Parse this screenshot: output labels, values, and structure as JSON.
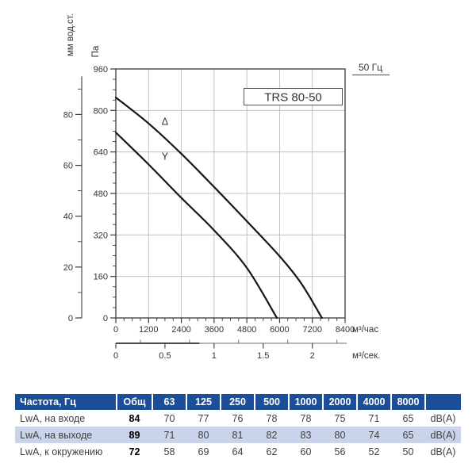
{
  "chart_data": {
    "type": "line",
    "title": "TRS 80-50",
    "frequency_badge": "50 Гц",
    "y_axis": {
      "label": "Па",
      "min": 0,
      "max": 960,
      "major_step": 160,
      "minor_step": 40,
      "tick_labels": [
        "0",
        "160",
        "320",
        "480",
        "640",
        "800",
        "960"
      ]
    },
    "y2_axis": {
      "label": "мм вод.ст.",
      "min": 0,
      "max": 95,
      "major_step": 20,
      "minor_step": 10,
      "pa_per_unit": 9.80665,
      "tick_labels": [
        "0",
        "20",
        "40",
        "60",
        "80"
      ]
    },
    "x_axis": {
      "label": "м³/час",
      "min": 0,
      "max": 8400,
      "major_step": 1200,
      "minor_step": 300,
      "tick_labels": [
        "0",
        "1200",
        "2400",
        "3600",
        "4800",
        "6000",
        "7200",
        "8400"
      ]
    },
    "x2_axis": {
      "label": "м³/сек.",
      "units_per_x": 3600,
      "axis_end": 2.35,
      "major_ticks": [
        0,
        0.5,
        1,
        1.5,
        2
      ],
      "tick_labels": [
        "0",
        "0.5",
        "1",
        "1.5",
        "2"
      ],
      "minor_ticks": [
        0.25,
        0.75,
        1.25,
        1.75,
        2.25
      ]
    },
    "grid": true,
    "series": [
      {
        "name": "Δ",
        "label_at": {
          "x": 1800,
          "y": 745
        },
        "points": [
          [
            0,
            850
          ],
          [
            1200,
            750
          ],
          [
            2400,
            633
          ],
          [
            3600,
            505
          ],
          [
            4800,
            373
          ],
          [
            6000,
            238
          ],
          [
            6800,
            132
          ],
          [
            7550,
            0
          ]
        ]
      },
      {
        "name": "Y",
        "label_at": {
          "x": 1800,
          "y": 610
        },
        "points": [
          [
            0,
            715
          ],
          [
            1200,
            592
          ],
          [
            2400,
            463
          ],
          [
            3600,
            338
          ],
          [
            4800,
            193
          ],
          [
            5900,
            0
          ]
        ]
      }
    ],
    "colors": {
      "curve": "#161616",
      "grid": "#b5b5b5",
      "axis": "#3a3a3a",
      "text": "#333333"
    }
  },
  "table": {
    "header": [
      "Частота, Гц",
      "Общ",
      "63",
      "125",
      "250",
      "500",
      "1000",
      "2000",
      "4000",
      "8000",
      ""
    ],
    "rows": [
      {
        "label": "LwA, на входе",
        "total": "84",
        "values": [
          "70",
          "77",
          "76",
          "78",
          "78",
          "75",
          "71",
          "65"
        ],
        "unit": "dB(A)"
      },
      {
        "label": "LwA, на выходе",
        "total": "89",
        "values": [
          "71",
          "80",
          "81",
          "82",
          "83",
          "80",
          "74",
          "65"
        ],
        "unit": "dB(A)"
      },
      {
        "label": "LwA, к окружению",
        "total": "72",
        "values": [
          "58",
          "69",
          "64",
          "62",
          "60",
          "56",
          "52",
          "50"
        ],
        "unit": "dB(A)"
      }
    ],
    "colors": {
      "header_bg": "#1b4f9a",
      "alt_row_bg": "#c9d3e9"
    }
  }
}
